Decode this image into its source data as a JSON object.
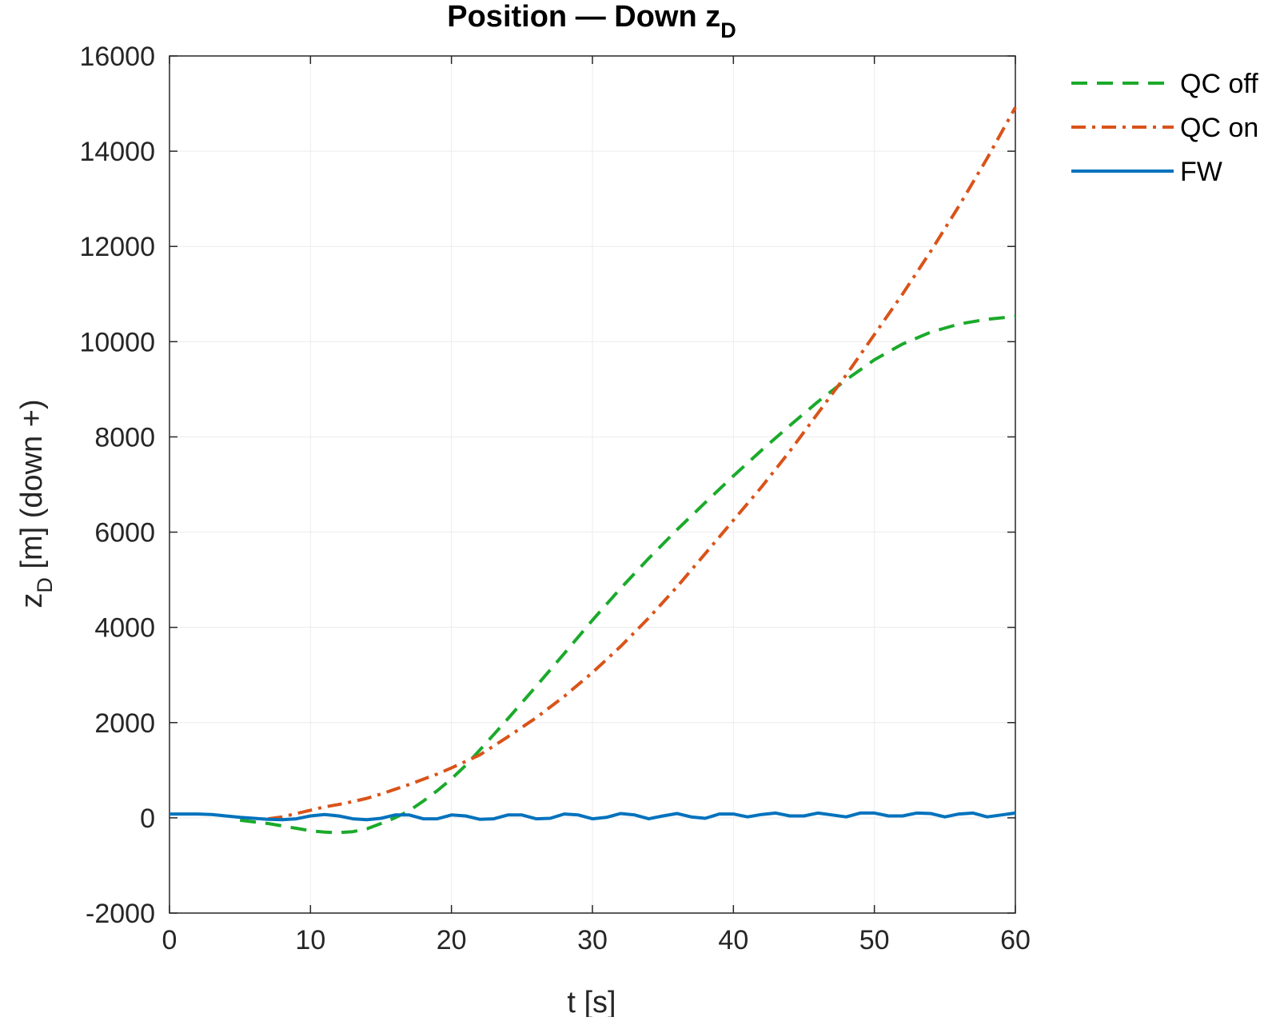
{
  "chart_data": {
    "type": "line",
    "title": "Position — Down z",
    "title_subscript": "D",
    "xlabel": "t [s]",
    "ylabel": "z",
    "ylabel_subscript": "D",
    "ylabel_suffix": " [m] (down +)",
    "xlim": [
      0,
      60
    ],
    "ylim": [
      -2000,
      16000
    ],
    "xticks": [
      0,
      10,
      20,
      30,
      40,
      50,
      60
    ],
    "yticks": [
      -2000,
      0,
      2000,
      4000,
      6000,
      8000,
      10000,
      12000,
      14000,
      16000
    ],
    "grid": true,
    "legend_position": "outside-top-right",
    "series": [
      {
        "name": "QC off",
        "color": "#1aaa2a",
        "style": "dashed",
        "x": [
          5,
          7,
          9,
          10,
          11,
          12,
          13,
          14,
          15,
          16,
          17,
          18,
          19,
          20,
          21,
          22,
          23,
          24,
          25,
          26,
          28,
          30,
          32,
          34,
          36,
          38,
          40,
          42,
          44,
          46,
          48,
          50,
          52,
          54,
          56,
          58,
          60
        ],
        "y": [
          -50,
          -120,
          -220,
          -270,
          -300,
          -310,
          -290,
          -230,
          -120,
          0,
          150,
          350,
          570,
          820,
          1100,
          1420,
          1750,
          2080,
          2420,
          2760,
          3450,
          4150,
          4820,
          5450,
          6050,
          6620,
          7180,
          7720,
          8240,
          8740,
          9200,
          9620,
          9950,
          10200,
          10370,
          10470,
          10530
        ]
      },
      {
        "name": "QC on",
        "color": "#d95319",
        "style": "dashdot",
        "x": [
          7,
          8,
          9,
          10,
          11,
          12,
          13,
          14,
          15,
          16,
          17,
          18,
          19,
          20,
          22,
          24,
          26,
          28,
          30,
          32,
          34,
          36,
          38,
          40,
          42,
          44,
          46,
          48,
          50,
          52,
          54,
          56,
          58,
          60
        ],
        "y": [
          -20,
          20,
          90,
          160,
          230,
          280,
          340,
          410,
          500,
          600,
          700,
          810,
          920,
          1050,
          1320,
          1700,
          2100,
          2550,
          3050,
          3600,
          4200,
          4850,
          5550,
          6250,
          6950,
          7700,
          8500,
          9300,
          10150,
          11000,
          11900,
          12850,
          13850,
          14920
        ]
      },
      {
        "name": "FW",
        "color": "#0072bd",
        "style": "solid",
        "x": [
          0,
          1,
          2,
          3,
          4,
          5,
          6,
          7,
          8,
          9,
          10,
          11,
          12,
          13,
          14,
          15,
          16,
          17,
          18,
          19,
          20,
          21,
          22,
          23,
          24,
          25,
          26,
          27,
          28,
          29,
          30,
          31,
          32,
          33,
          34,
          35,
          36,
          37,
          38,
          39,
          40,
          41,
          42,
          43,
          44,
          45,
          46,
          47,
          48,
          49,
          50,
          51,
          52,
          53,
          54,
          55,
          56,
          57,
          58,
          59,
          60
        ],
        "y": [
          80,
          80,
          80,
          70,
          40,
          10,
          -10,
          -30,
          -40,
          -20,
          40,
          70,
          40,
          -20,
          -40,
          -10,
          60,
          60,
          -20,
          -20,
          60,
          40,
          -30,
          -20,
          60,
          60,
          -20,
          -10,
          80,
          60,
          -20,
          10,
          90,
          60,
          -20,
          40,
          90,
          20,
          -10,
          80,
          80,
          20,
          70,
          100,
          40,
          40,
          100,
          60,
          20,
          100,
          100,
          40,
          40,
          100,
          90,
          20,
          80,
          100,
          20,
          60,
          100
        ]
      }
    ]
  }
}
